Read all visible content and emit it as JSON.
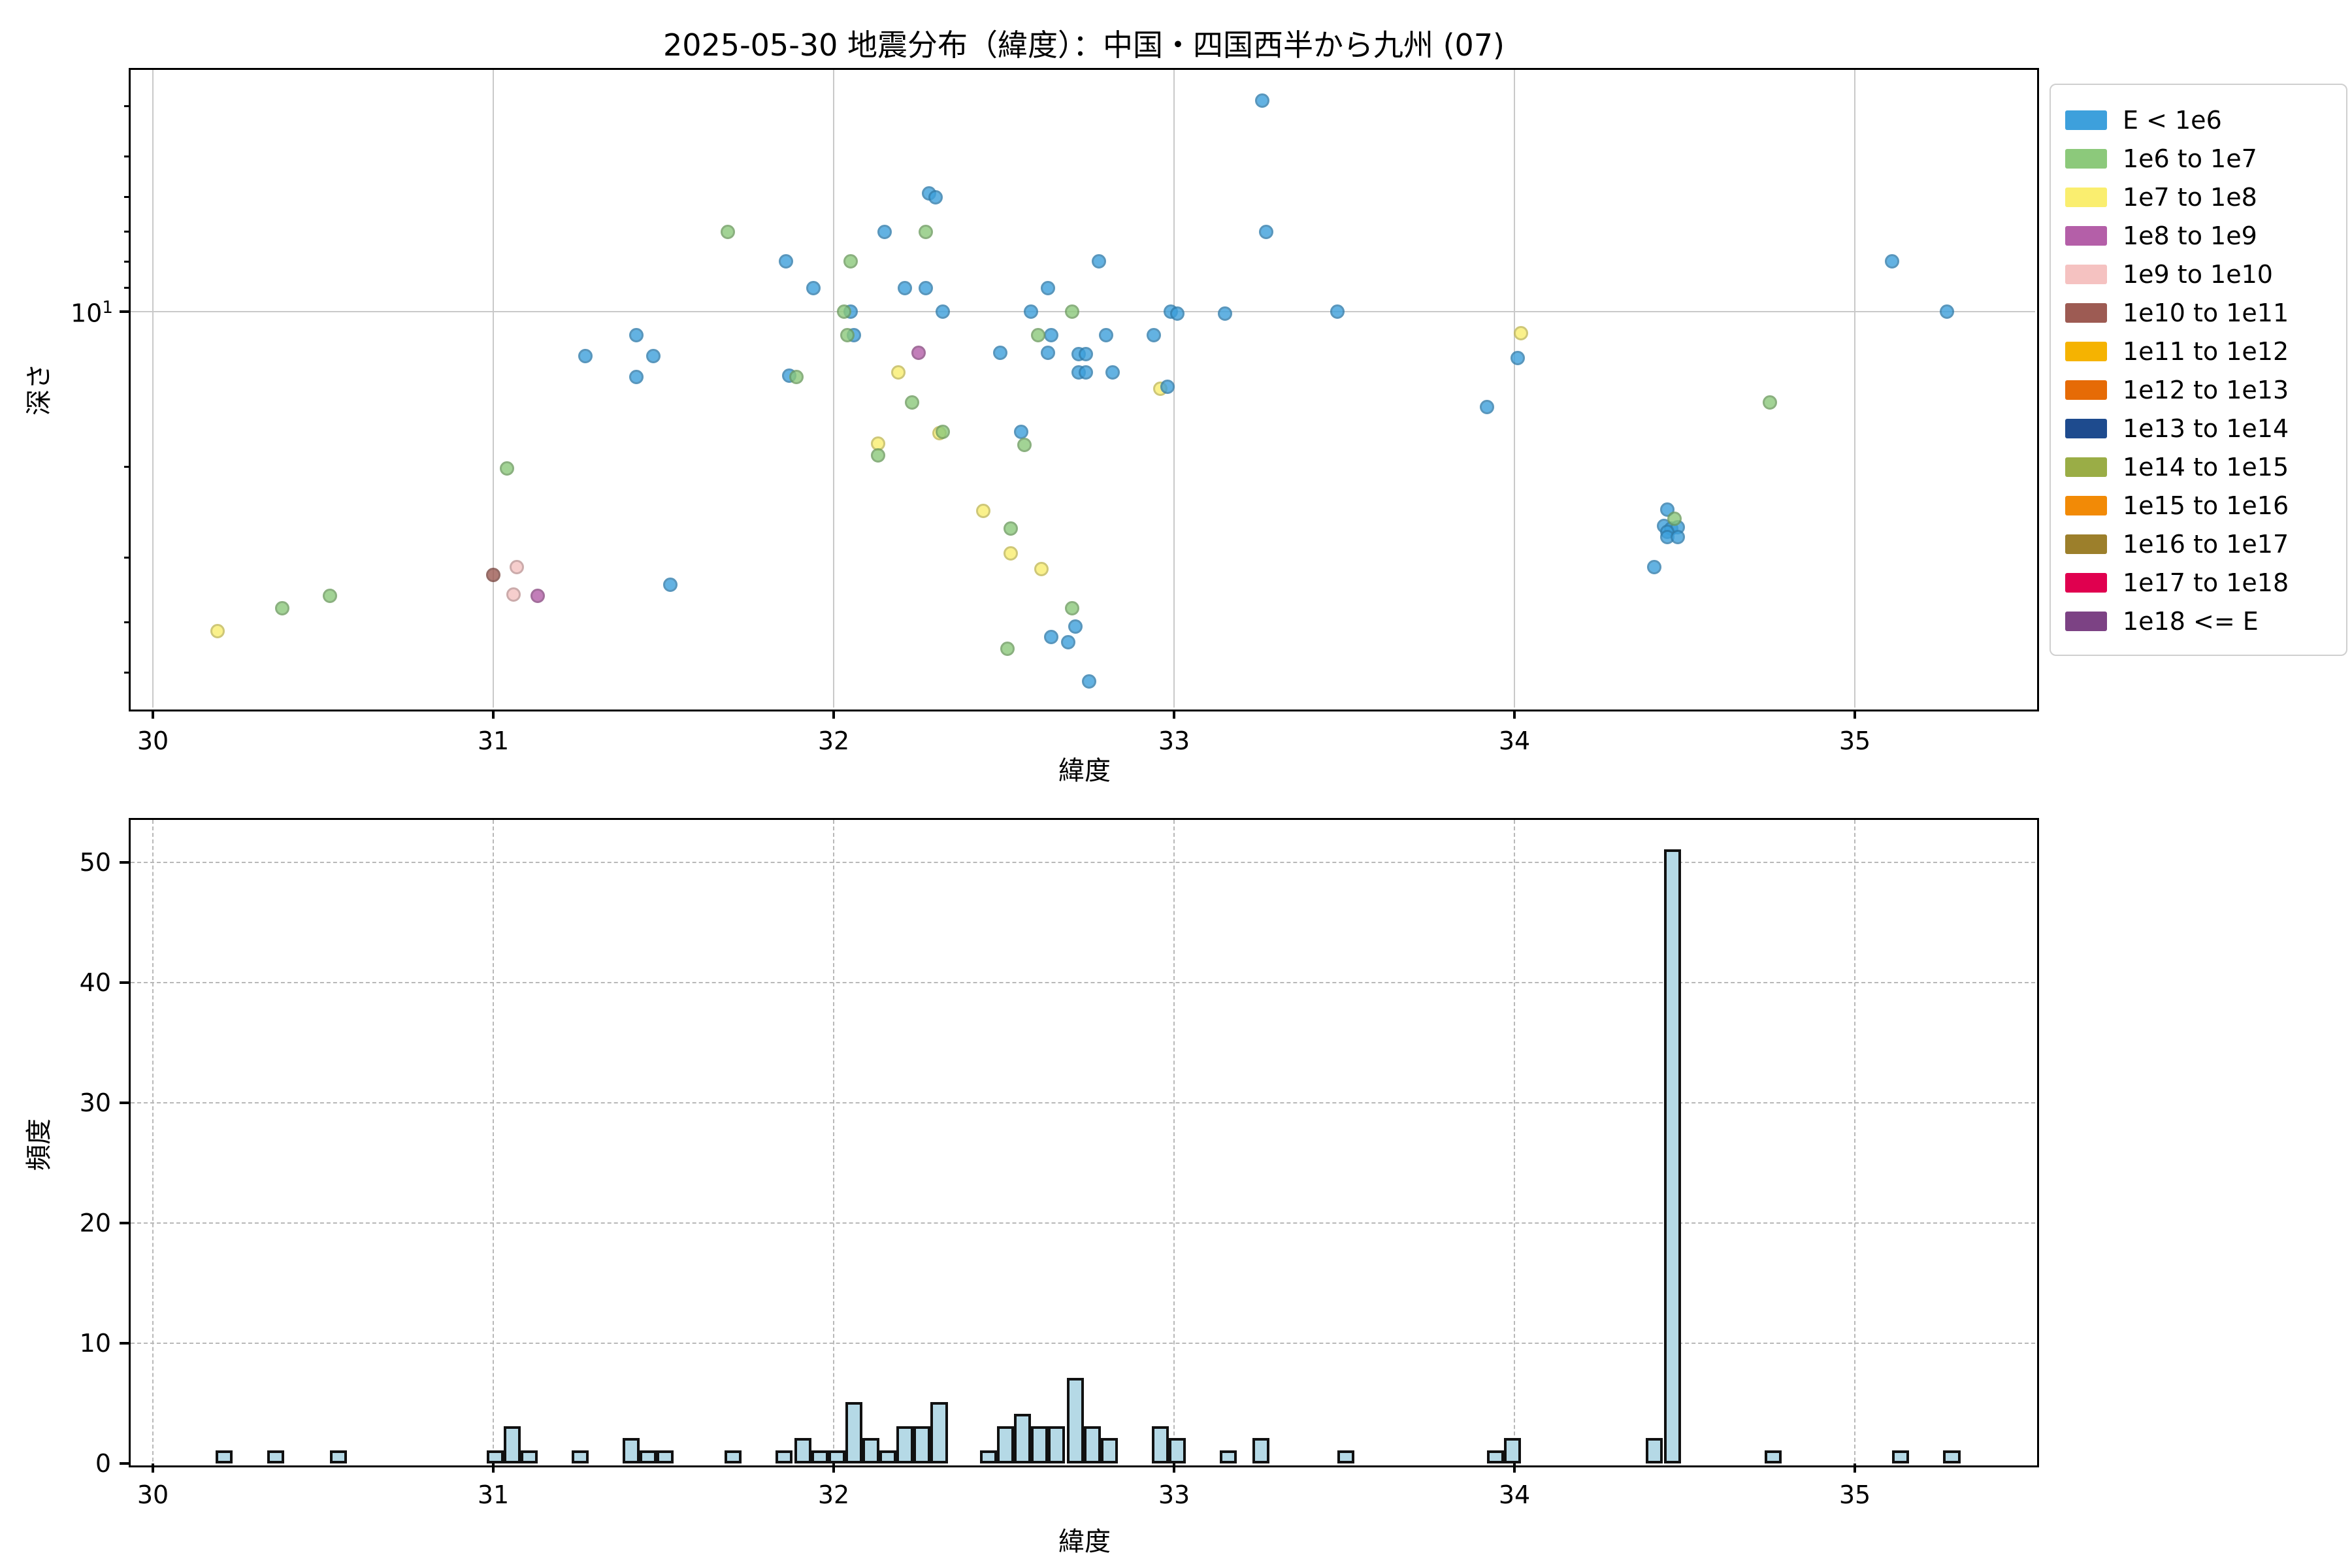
{
  "figure": {
    "title": "2025-05-30 地震分布（緯度）：中国・四国西半から九州 (07)",
    "background": "#ffffff"
  },
  "scatter": {
    "xlabel": "緯度",
    "ylabel": "深さ",
    "y_major_base": "10",
    "y_major_exp": "1",
    "x_tick_labels": [
      "30",
      "31",
      "32",
      "33",
      "34",
      "35"
    ]
  },
  "hist": {
    "xlabel": "緯度",
    "ylabel": "頻度",
    "x_tick_labels": [
      "30",
      "31",
      "32",
      "33",
      "34",
      "35"
    ],
    "y_tick_labels": [
      "0",
      "10",
      "20",
      "30",
      "40",
      "50"
    ]
  },
  "legend": {
    "entries": [
      {
        "label": "E < 1e6",
        "color": "#3DA0DC"
      },
      {
        "label": "1e6 to 1e7",
        "color": "#8CC97B"
      },
      {
        "label": "1e7 to 1e8",
        "color": "#FAEE6F"
      },
      {
        "label": "1e8 to 1e9",
        "color": "#B45FA8"
      },
      {
        "label": "1e9 to 1e10",
        "color": "#F5C2C1"
      },
      {
        "label": "1e10 to 1e11",
        "color": "#9D5B53"
      },
      {
        "label": "1e11 to 1e12",
        "color": "#F5B301"
      },
      {
        "label": "1e12 to 1e13",
        "color": "#E66B06"
      },
      {
        "label": "1e13 to 1e14",
        "color": "#1E4B8E"
      },
      {
        "label": "1e14 to 1e15",
        "color": "#9AAD46"
      },
      {
        "label": "1e15 to 1e16",
        "color": "#F28A06"
      },
      {
        "label": "1e16 to 1e17",
        "color": "#9C7F2B"
      },
      {
        "label": "1e17 to 1e18",
        "color": "#E0004F"
      },
      {
        "label": "1e18 <= E",
        "color": "#7C4284"
      }
    ]
  },
  "chart_data": [
    {
      "type": "scatter",
      "title": "2025-05-30 地震分布（緯度）：中国・四国西半から九州 (07)",
      "xlabel": "緯度",
      "ylabel": "深さ",
      "x_range": [
        29.94,
        35.54
      ],
      "x_ticks": [
        30,
        31,
        32,
        33,
        34,
        35
      ],
      "y_axis": "log scale, inverted (depth km, shallow at top), major tick 10, minor ticks 4-9 and 20-50, range ~3.4 to ~59",
      "grid": "solid light gray: vertical at integer latitudes, horizontal at depth 10",
      "legend_position": "upper right, outside axes",
      "series": [
        {
          "name": "1e7 to 1e8",
          "color": "#FAEE6F",
          "points": [
            [
              30.19,
              41.6
            ],
            [
              32.19,
              13.1
            ],
            [
              32.13,
              18.0
            ],
            [
              32.31,
              17.2
            ],
            [
              32.44,
              24.3
            ],
            [
              32.52,
              29.4
            ],
            [
              32.61,
              31.5
            ],
            [
              32.96,
              14.1
            ],
            [
              34.02,
              11.0
            ]
          ]
        },
        {
          "name": "E < 1e6",
          "color": "#3DA0DC",
          "points": [
            [
              33.26,
              3.9
            ],
            [
              32.28,
              5.9
            ],
            [
              32.3,
              6.0
            ],
            [
              32.15,
              7.0
            ],
            [
              33.27,
              7.0
            ],
            [
              31.86,
              8.0
            ],
            [
              32.78,
              8.0
            ],
            [
              35.11,
              8.0
            ],
            [
              31.94,
              9.0
            ],
            [
              32.21,
              9.0
            ],
            [
              32.27,
              9.0
            ],
            [
              32.63,
              9.0
            ],
            [
              32.58,
              10.0
            ],
            [
              32.05,
              10.0
            ],
            [
              32.32,
              10.0
            ],
            [
              32.99,
              10.0
            ],
            [
              33.01,
              10.1
            ],
            [
              33.15,
              10.1
            ],
            [
              33.48,
              10.0
            ],
            [
              35.27,
              10.0
            ],
            [
              32.06,
              11.1
            ],
            [
              32.64,
              11.1
            ],
            [
              32.8,
              11.1
            ],
            [
              32.94,
              11.1
            ],
            [
              31.42,
              11.1
            ],
            [
              31.27,
              12.2
            ],
            [
              31.47,
              12.2
            ],
            [
              32.49,
              12.0
            ],
            [
              32.63,
              12.0
            ],
            [
              32.72,
              12.1
            ],
            [
              32.74,
              12.1
            ],
            [
              34.01,
              12.3
            ],
            [
              31.42,
              13.4
            ],
            [
              31.87,
              13.3
            ],
            [
              32.72,
              13.1
            ],
            [
              32.74,
              13.1
            ],
            [
              32.82,
              13.1
            ],
            [
              32.98,
              14.0
            ],
            [
              33.92,
              15.3
            ],
            [
              32.55,
              17.1
            ],
            [
              31.52,
              33.8
            ],
            [
              32.71,
              40.8
            ],
            [
              32.64,
              42.7
            ],
            [
              32.69,
              43.7
            ],
            [
              32.75,
              52.0
            ],
            [
              34.41,
              31.3
            ],
            [
              34.45,
              24.2
            ],
            [
              34.44,
              26.0
            ],
            [
              34.46,
              26.3
            ],
            [
              34.48,
              26.2
            ],
            [
              34.45,
              26.7
            ],
            [
              34.45,
              27.3
            ],
            [
              34.48,
              27.3
            ]
          ]
        },
        {
          "name": "1e6 to 1e7",
          "color": "#8CC97B",
          "points": [
            [
              30.38,
              37.6
            ],
            [
              30.52,
              35.5
            ],
            [
              31.04,
              20.1
            ],
            [
              31.69,
              7.0
            ],
            [
              32.05,
              8.0
            ],
            [
              32.27,
              7.0
            ],
            [
              32.03,
              10.0
            ],
            [
              32.04,
              11.1
            ],
            [
              32.6,
              11.1
            ],
            [
              32.7,
              10.0
            ],
            [
              31.89,
              13.4
            ],
            [
              32.23,
              15.0
            ],
            [
              32.32,
              17.1
            ],
            [
              32.13,
              19.0
            ],
            [
              32.56,
              18.1
            ],
            [
              32.52,
              26.3
            ],
            [
              32.7,
              37.6
            ],
            [
              32.51,
              45.0
            ],
            [
              34.47,
              25.2
            ],
            [
              34.75,
              15.0
            ]
          ]
        },
        {
          "name": "1e10 to 1e11",
          "color": "#9D5B53",
          "points": [
            [
              31.0,
              32.4
            ]
          ]
        },
        {
          "name": "1e9 to 1e10",
          "color": "#F5C2C1",
          "points": [
            [
              31.07,
              31.3
            ],
            [
              31.06,
              35.3
            ]
          ]
        },
        {
          "name": "1e8 to 1e9",
          "color": "#B45FA8",
          "points": [
            [
              31.13,
              35.5
            ],
            [
              32.25,
              12.0
            ]
          ]
        }
      ]
    },
    {
      "type": "bar",
      "subtype": "histogram",
      "xlabel": "緯度",
      "ylabel": "頻度",
      "x_range": [
        29.94,
        35.54
      ],
      "x_ticks": [
        30,
        31,
        32,
        33,
        34,
        35
      ],
      "ylim": [
        0,
        53.5
      ],
      "y_ticks": [
        0,
        10,
        20,
        30,
        40,
        50
      ],
      "grid": "dashed light gray: vertical at integer latitudes, horizontal at 10-50",
      "bar_fill": "#b5d9e6",
      "bar_edge": "#111111",
      "bin_width": 0.05,
      "bins": [
        [
          30.185,
          1
        ],
        [
          30.335,
          1
        ],
        [
          30.52,
          1
        ],
        [
          30.98,
          1
        ],
        [
          31.03,
          3
        ],
        [
          31.08,
          1
        ],
        [
          31.23,
          1
        ],
        [
          31.38,
          2
        ],
        [
          31.43,
          1
        ],
        [
          31.48,
          1
        ],
        [
          31.68,
          1
        ],
        [
          31.83,
          1
        ],
        [
          31.885,
          2
        ],
        [
          31.935,
          1
        ],
        [
          31.985,
          1
        ],
        [
          32.035,
          5
        ],
        [
          32.085,
          2
        ],
        [
          32.135,
          1
        ],
        [
          32.185,
          3
        ],
        [
          32.235,
          3
        ],
        [
          32.285,
          5
        ],
        [
          32.43,
          1
        ],
        [
          32.48,
          3
        ],
        [
          32.53,
          4
        ],
        [
          32.58,
          3
        ],
        [
          32.63,
          3
        ],
        [
          32.685,
          7
        ],
        [
          32.735,
          3
        ],
        [
          32.785,
          2
        ],
        [
          32.935,
          3
        ],
        [
          32.985,
          2
        ],
        [
          33.135,
          1
        ],
        [
          33.23,
          2
        ],
        [
          33.48,
          1
        ],
        [
          33.92,
          1
        ],
        [
          33.97,
          2
        ],
        [
          34.385,
          2
        ],
        [
          34.44,
          51
        ],
        [
          34.735,
          1
        ],
        [
          35.11,
          1
        ],
        [
          35.26,
          1
        ]
      ]
    }
  ]
}
